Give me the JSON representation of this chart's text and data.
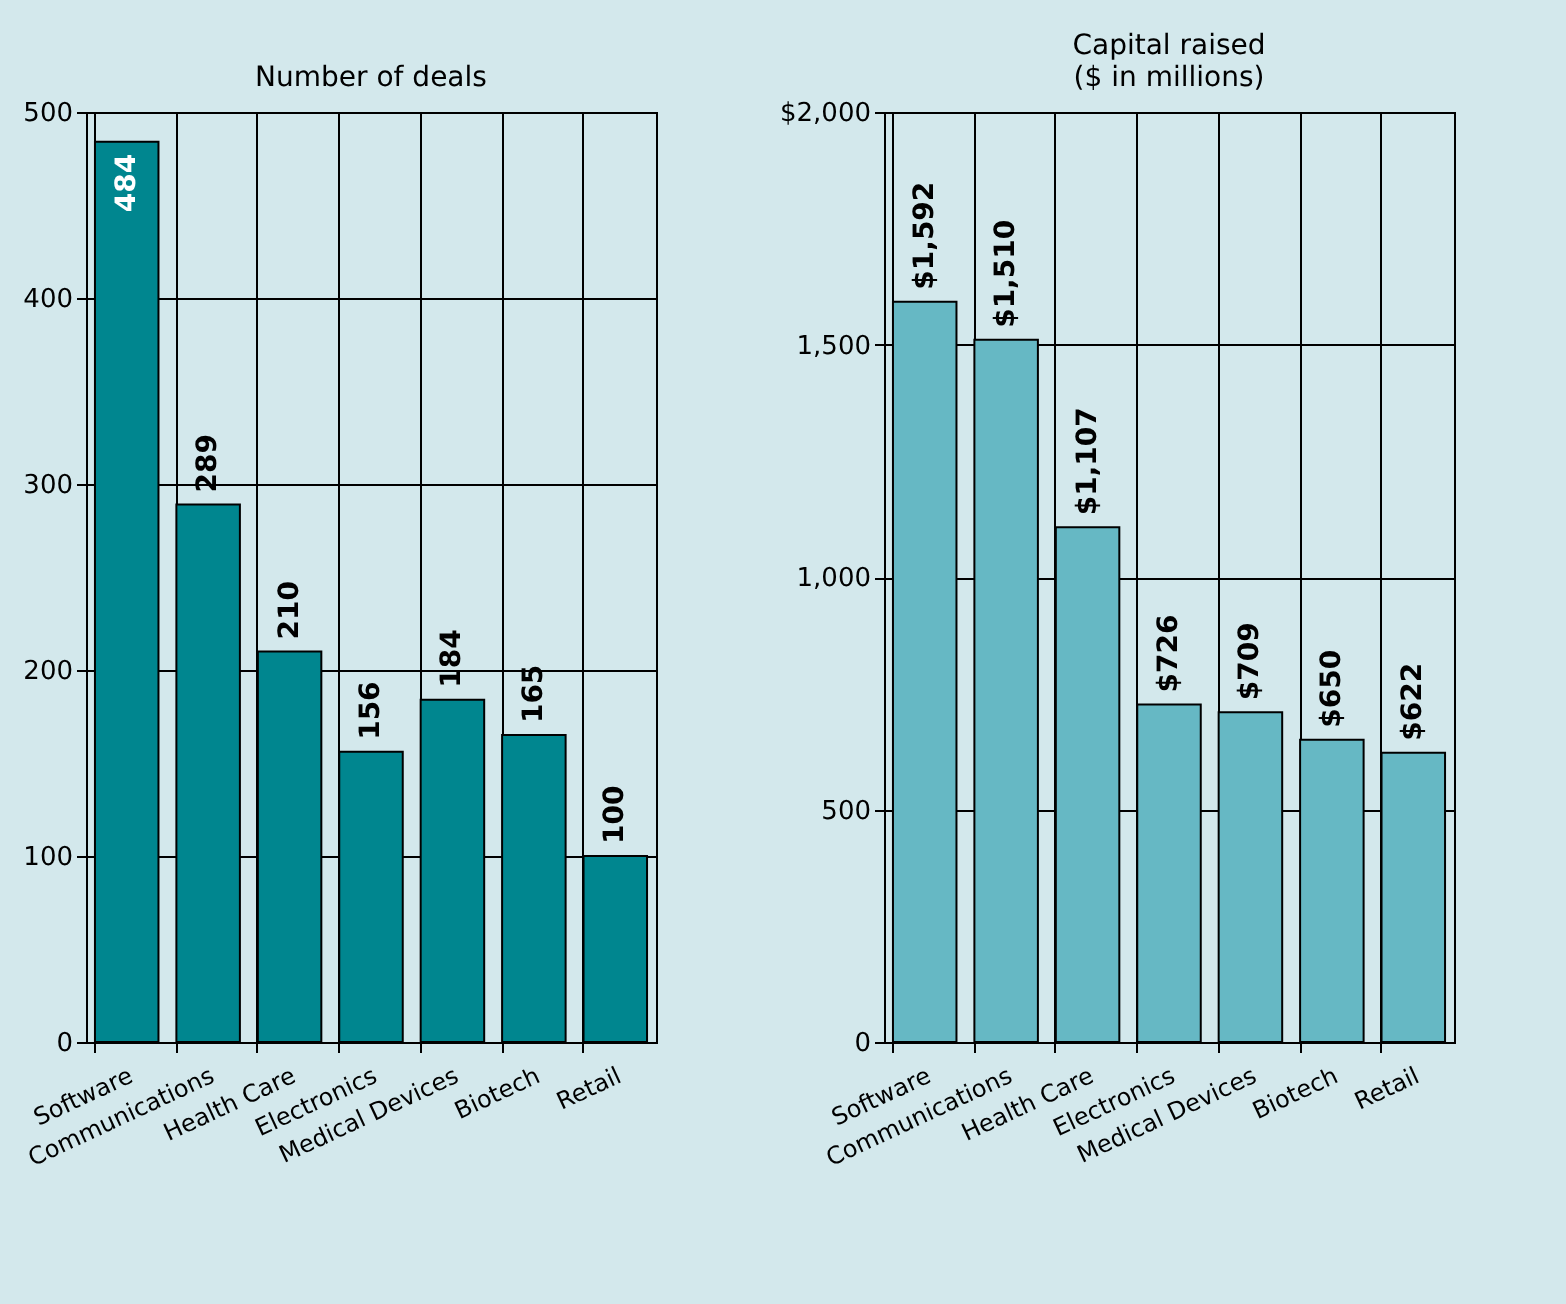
{
  "chart_data": [
    {
      "type": "bar",
      "title": "Number of deals",
      "categories": [
        "Software",
        "Communications",
        "Health Care",
        "Electronics",
        "Medical Devices",
        "Biotech",
        "Retail"
      ],
      "values": [
        484,
        289,
        210,
        156,
        184,
        165,
        100
      ],
      "color": "#00868f",
      "ylim": [
        0,
        500
      ],
      "yticks": [
        0,
        100,
        200,
        300,
        400,
        500
      ],
      "grid": true,
      "data_labels": true
    },
    {
      "type": "bar",
      "title": "Capital raised\n($ in millions)",
      "categories": [
        "Software",
        "Communications",
        "Health Care",
        "Electronics",
        "Medical Devices",
        "Biotech",
        "Retail"
      ],
      "values": [
        1592,
        1510,
        1107,
        726,
        709,
        650,
        622
      ],
      "value_labels": [
        "$1,592",
        "$1,510",
        "$1,107",
        "$726",
        "$709",
        "$650",
        "$622"
      ],
      "color": "#66b8c4",
      "ylim": [
        0,
        2000
      ],
      "yticks": [
        0,
        500,
        {
          "value": 1000,
          "label": "1,000"
        },
        {
          "value": 1500,
          "label": "1,500"
        },
        {
          "value": 2000,
          "label": "$2,000"
        }
      ],
      "grid": true
    }
  ]
}
